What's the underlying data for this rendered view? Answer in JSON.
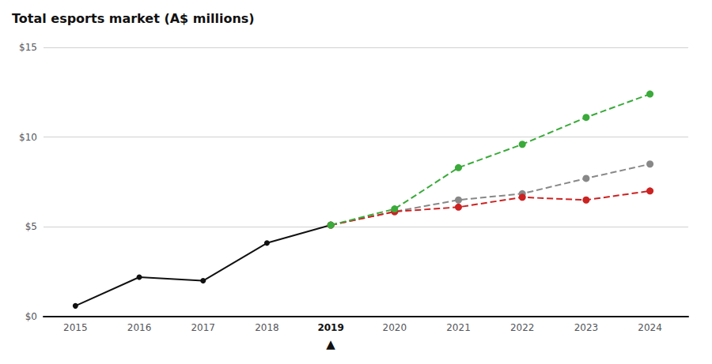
{
  "chart_data": {
    "type": "line",
    "title": "Total esports market (A$ millions)",
    "series": [
      {
        "x": [
          2015,
          2016,
          2017,
          2018,
          2019
        ],
        "values": [
          0.6,
          2.2,
          2.0,
          4.1,
          5.1
        ],
        "color": "#111111",
        "line_style": "solid",
        "marker": "circle"
      },
      {
        "x": [
          2019,
          2020,
          2021,
          2022,
          2023,
          2024
        ],
        "values": [
          5.1,
          5.85,
          6.5,
          6.85,
          7.7,
          8.5
        ],
        "color": "#888888",
        "line_style": "dashed",
        "marker": "circle"
      },
      {
        "x": [
          2019,
          2020,
          2021,
          2022,
          2023,
          2024
        ],
        "values": [
          5.1,
          5.85,
          6.1,
          6.65,
          6.5,
          7.0
        ],
        "color": "#cc2222",
        "line_style": "dashed",
        "marker": "circle"
      },
      {
        "x": [
          2019,
          2020,
          2021,
          2022,
          2023,
          2024
        ],
        "values": [
          5.1,
          6.0,
          8.3,
          9.6,
          11.1,
          12.4
        ],
        "color": "#3aaa3a",
        "line_style": "dashed",
        "marker": "circle"
      }
    ],
    "xlim": [
      2014.5,
      2024.6
    ],
    "xticks": [
      2015,
      2016,
      2017,
      2018,
      2019,
      2020,
      2021,
      2022,
      2023,
      2024
    ],
    "ylim": [
      0,
      15
    ],
    "yticks": [
      {
        "value": 0,
        "label": "$0"
      },
      {
        "value": 5,
        "label": "$5"
      },
      {
        "value": 10,
        "label": "$10"
      },
      {
        "value": 15,
        "label": "$15"
      }
    ],
    "annotations": [
      {
        "text": "▲",
        "x": 2019
      }
    ],
    "grid": true
  }
}
